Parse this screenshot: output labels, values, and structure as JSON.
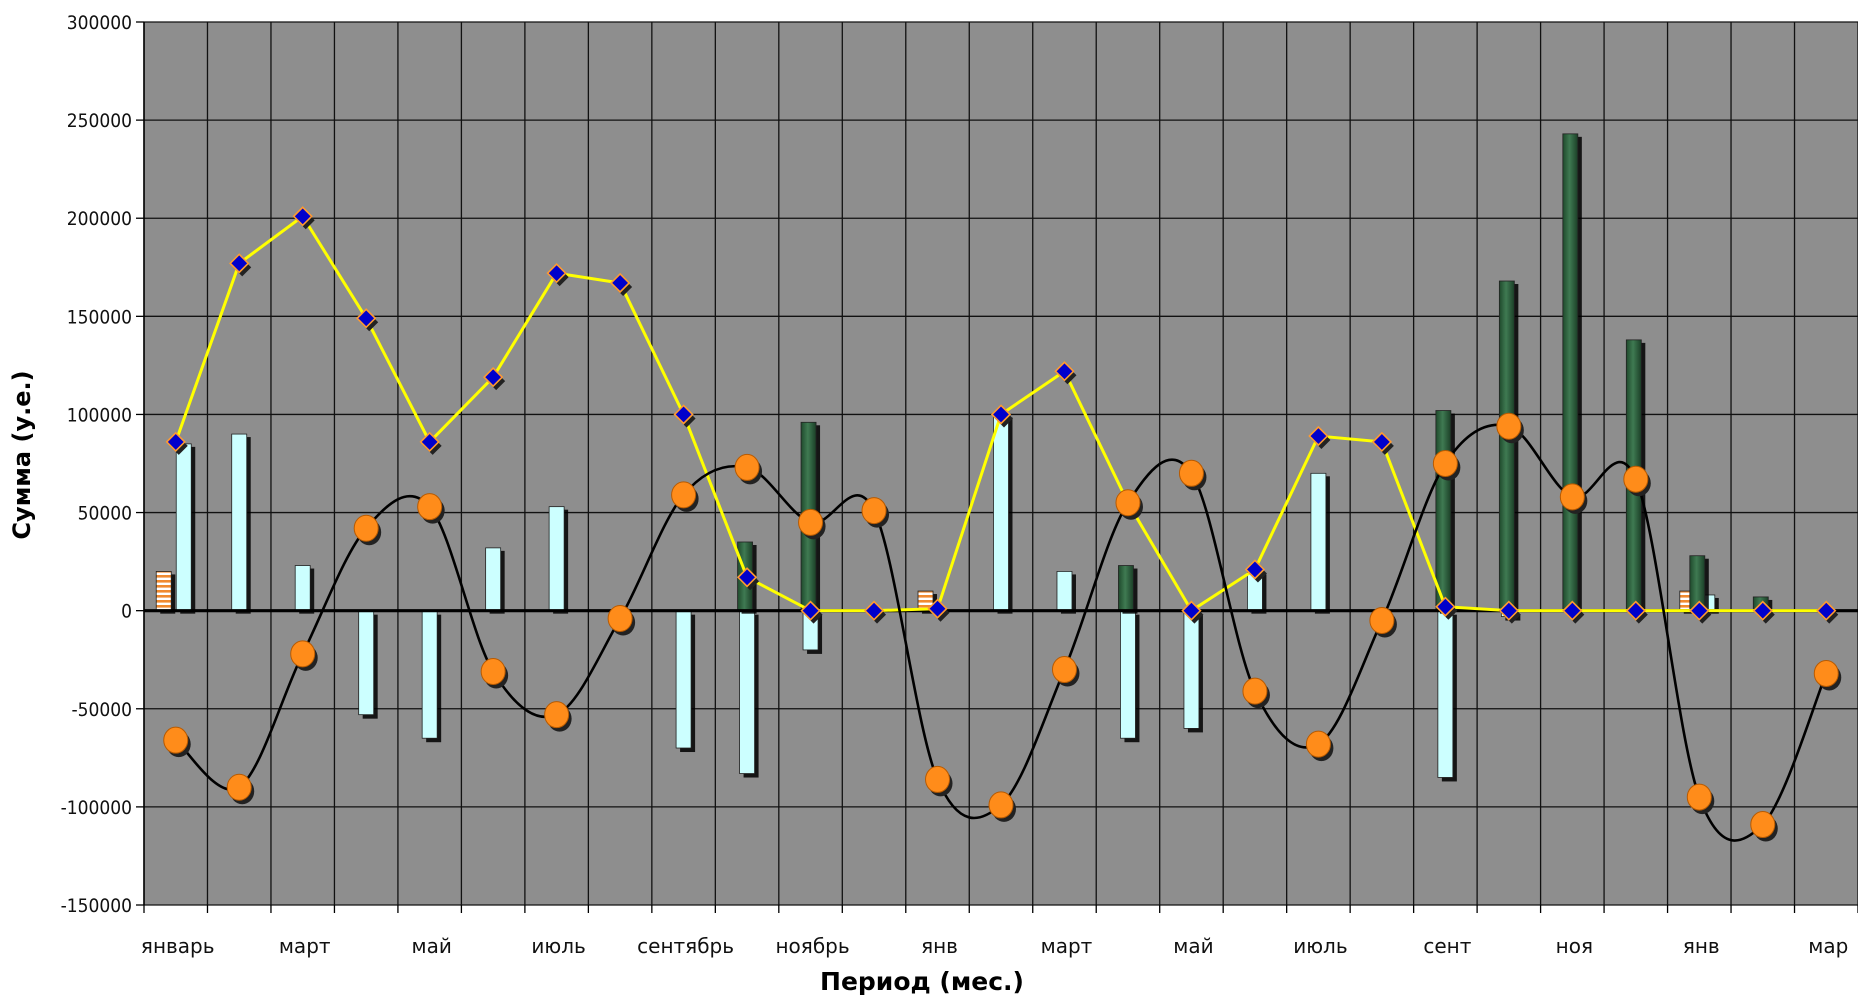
{
  "chart_data": {
    "type": "bar",
    "title": "",
    "xlabel": "Период  (мес.)",
    "ylabel": "Сумма (у.е.)",
    "ylim": [
      -150000,
      300000
    ],
    "ytick_step": 50000,
    "ytick_labels": [
      "300000",
      "250000",
      "200000",
      "150000",
      "100000",
      "50000",
      "0",
      "-50000",
      "-100000",
      "-150000"
    ],
    "grid": true,
    "legend": "none",
    "xtick_labels": [
      {
        "index": 0,
        "label": "январь"
      },
      {
        "index": 2,
        "label": "март"
      },
      {
        "index": 4,
        "label": "май"
      },
      {
        "index": 6,
        "label": "июль"
      },
      {
        "index": 8,
        "label": "сентябрь"
      },
      {
        "index": 10,
        "label": "ноябрь"
      },
      {
        "index": 12,
        "label": "янв"
      },
      {
        "index": 14,
        "label": "март"
      },
      {
        "index": 16,
        "label": "май"
      },
      {
        "index": 18,
        "label": "июль"
      },
      {
        "index": 20,
        "label": "сент"
      },
      {
        "index": 22,
        "label": "ноя"
      },
      {
        "index": 24,
        "label": "янв"
      },
      {
        "index": 26,
        "label": "мар"
      }
    ],
    "category_count": 27,
    "series": [
      {
        "kind": "bar",
        "color": "#f08a30",
        "values": [
          20000,
          0,
          0,
          0,
          0,
          0,
          0,
          0,
          0,
          0,
          0,
          0,
          10000,
          0,
          0,
          0,
          0,
          0,
          0,
          0,
          0,
          0,
          0,
          0,
          10000,
          0,
          0
        ]
      },
      {
        "kind": "bar",
        "color": "#ccffff",
        "values": [
          85000,
          90000,
          23000,
          -53000,
          -65000,
          32000,
          53000,
          -7000,
          -70000,
          -83000,
          -20000,
          0,
          0,
          100000,
          20000,
          -65000,
          -60000,
          20000,
          70000,
          -5000,
          -85000,
          -3000,
          0,
          0,
          8000,
          0,
          0
        ]
      },
      {
        "kind": "bar",
        "color": "#2f5e3c",
        "values": [
          0,
          0,
          0,
          0,
          0,
          0,
          0,
          0,
          0,
          35000,
          96000,
          0,
          0,
          0,
          0,
          23000,
          0,
          0,
          0,
          0,
          102000,
          168000,
          243000,
          138000,
          28000,
          7000,
          0
        ]
      },
      {
        "kind": "line",
        "color": "#ffff00",
        "marker": "diamond",
        "marker_color": "#0000cc",
        "values": [
          86000,
          177000,
          201000,
          149000,
          86000,
          119000,
          172000,
          167000,
          100000,
          17000,
          0,
          0,
          1000,
          100000,
          122000,
          55000,
          0,
          21000,
          89000,
          86000,
          2000,
          0,
          0,
          0,
          0,
          0,
          0
        ]
      },
      {
        "kind": "line",
        "color": "#000000",
        "marker": "circle",
        "marker_color": "#ff8c1a",
        "smooth": true,
        "values": [
          -66000,
          -90000,
          -22000,
          42000,
          53000,
          -31000,
          -53000,
          -4000,
          59000,
          73000,
          45000,
          51000,
          -86000,
          -99000,
          -30000,
          55000,
          70000,
          -41000,
          -68000,
          -5000,
          75000,
          94000,
          58000,
          67000,
          -95000,
          -109000,
          -32000
        ]
      }
    ]
  }
}
